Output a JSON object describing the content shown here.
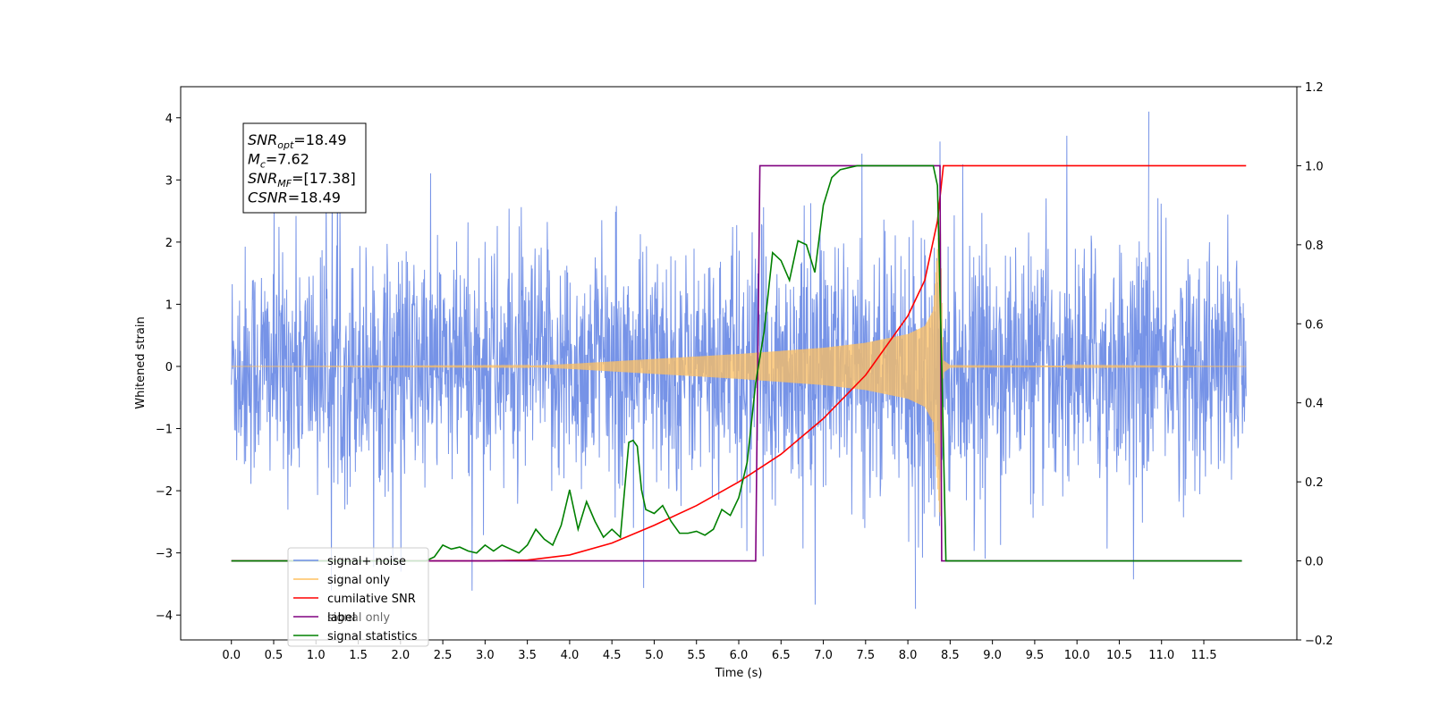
{
  "chart_data": {
    "type": "line",
    "xlabel": "Time (s)",
    "ylabel_left": "Whitened strain",
    "ylabel_right": "",
    "xlim": [
      -0.6,
      12.6
    ],
    "ylim_left": [
      -4.4,
      4.5
    ],
    "ylim_right": [
      -0.2,
      1.2
    ],
    "xticks": [
      0.0,
      0.5,
      1.0,
      1.5,
      2.0,
      2.5,
      3.0,
      3.5,
      4.0,
      4.5,
      5.0,
      5.5,
      6.0,
      6.5,
      7.0,
      7.5,
      8.0,
      8.5,
      9.0,
      9.5,
      10.0,
      10.5,
      11.0,
      11.5
    ],
    "xtick_labels": [
      "0.0",
      "0.5",
      "1.0",
      "1.5",
      "2.0",
      "2.5",
      "3.0",
      "3.5",
      "4.0",
      "4.5",
      "5.0",
      "5.5",
      "6.0",
      "6.5",
      "7.0",
      "7.5",
      "8.0",
      "8.5",
      "9.0",
      "9.5",
      "10.0",
      "10.5",
      "11.0",
      "11.5"
    ],
    "yticks_left": [
      -4,
      -3,
      -2,
      -1,
      0,
      1,
      2,
      3,
      4
    ],
    "yticks_right": [
      -0.2,
      0.0,
      0.2,
      0.4,
      0.6,
      0.8,
      1.0,
      1.2
    ],
    "yticks_right_labels": [
      "−0.2",
      "0.0",
      "0.2",
      "0.4",
      "0.6",
      "0.8",
      "1.0",
      "1.2"
    ],
    "yticks_left_labels": [
      "−4",
      "−3",
      "−2",
      "−1",
      "0",
      "1",
      "2",
      "3",
      "4"
    ],
    "grid": false,
    "legend_position": "lower-left",
    "legend": [
      {
        "name": "signal+ noise",
        "color": "#6f8de6"
      },
      {
        "name": "signal only",
        "color": "#ffc060"
      },
      {
        "name": "cumilative SNR",
        "color": "#ff0000"
      },
      {
        "name": "label",
        "color": "#800080"
      },
      {
        "name": "signal statistics",
        "color": "#008000"
      }
    ],
    "legend_ghost_text": "signal only",
    "annotation": {
      "lines": [
        {
          "base": "SNR",
          "sub": "opt",
          "value": "=18.49"
        },
        {
          "base": "M",
          "sub": "c",
          "value": "=7.62"
        },
        {
          "base": "SNR",
          "sub": "MF",
          "value": "=[17.38]"
        },
        {
          "base": "CSNR",
          "sub": "",
          "value": "=18.49"
        }
      ]
    },
    "series": [
      {
        "name": "signal+ noise",
        "axis": "left",
        "color": "#6f8de6",
        "description_range": [
          0.0,
          12.0
        ],
        "noise_amplitude_approx": 2.5,
        "noise_max": 4.1,
        "noise_min": -3.9
      },
      {
        "name": "signal only",
        "axis": "left",
        "color": "#ffc060",
        "chirp_envelope": {
          "x": [
            0.0,
            3.5,
            4.0,
            5.0,
            6.0,
            6.5,
            7.0,
            7.5,
            8.0,
            8.2,
            8.3,
            8.38,
            8.42,
            8.5,
            12.0
          ],
          "y": [
            0.0,
            0.01,
            0.04,
            0.12,
            0.2,
            0.25,
            0.3,
            0.38,
            0.52,
            0.65,
            0.9,
            2.5,
            0.1,
            0.02,
            0.0
          ]
        }
      },
      {
        "name": "cumilative SNR",
        "axis": "right",
        "color": "#ff0000",
        "x": [
          0.0,
          3.0,
          3.5,
          4.0,
          4.5,
          5.0,
          5.5,
          6.0,
          6.5,
          7.0,
          7.5,
          8.0,
          8.2,
          8.35,
          8.42,
          8.45,
          12.0
        ],
        "y": [
          0.0,
          0.0,
          0.002,
          0.015,
          0.045,
          0.09,
          0.14,
          0.2,
          0.27,
          0.36,
          0.47,
          0.62,
          0.71,
          0.86,
          1.0,
          1.0,
          1.0
        ]
      },
      {
        "name": "label",
        "axis": "right",
        "color": "#800080",
        "x": [
          0.0,
          6.2,
          6.25,
          8.38,
          8.4,
          11.95
        ],
        "y": [
          0.0,
          0.0,
          1.0,
          1.0,
          0.0,
          0.0
        ]
      },
      {
        "name": "signal statistics",
        "axis": "right",
        "color": "#008000",
        "x": [
          0.0,
          2.3,
          2.4,
          2.5,
          2.6,
          2.7,
          2.8,
          2.9,
          3.0,
          3.1,
          3.2,
          3.3,
          3.4,
          3.5,
          3.6,
          3.7,
          3.8,
          3.9,
          4.0,
          4.1,
          4.2,
          4.3,
          4.4,
          4.5,
          4.6,
          4.7,
          4.75,
          4.8,
          4.85,
          4.9,
          5.0,
          5.1,
          5.2,
          5.3,
          5.4,
          5.5,
          5.6,
          5.7,
          5.8,
          5.9,
          6.0,
          6.1,
          6.2,
          6.3,
          6.4,
          6.5,
          6.6,
          6.7,
          6.8,
          6.9,
          7.0,
          7.1,
          7.2,
          7.4,
          8.3,
          8.35,
          8.4,
          8.45,
          11.95
        ],
        "y": [
          0.0,
          0.0,
          0.01,
          0.04,
          0.03,
          0.035,
          0.025,
          0.02,
          0.04,
          0.025,
          0.04,
          0.03,
          0.02,
          0.04,
          0.08,
          0.055,
          0.04,
          0.09,
          0.18,
          0.08,
          0.15,
          0.1,
          0.06,
          0.08,
          0.06,
          0.3,
          0.305,
          0.29,
          0.18,
          0.13,
          0.12,
          0.14,
          0.1,
          0.07,
          0.07,
          0.075,
          0.065,
          0.08,
          0.13,
          0.115,
          0.16,
          0.25,
          0.45,
          0.58,
          0.78,
          0.76,
          0.71,
          0.81,
          0.8,
          0.73,
          0.9,
          0.97,
          0.99,
          1.0,
          1.0,
          0.95,
          0.5,
          0.0,
          0.0
        ]
      }
    ]
  }
}
